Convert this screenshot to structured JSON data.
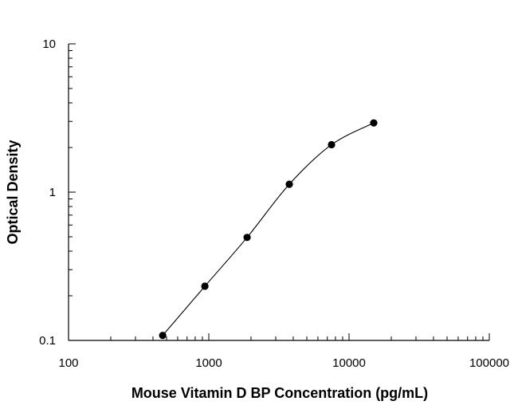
{
  "chart_data": {
    "type": "scatter",
    "title": "",
    "xlabel": "Mouse Vitamin D BP Concentration (pg/mL)",
    "ylabel": "Optical Density",
    "x_scale": "log",
    "y_scale": "log",
    "xlim": [
      100,
      100000
    ],
    "ylim": [
      0.1,
      10
    ],
    "x_ticks": [
      100,
      1000,
      10000,
      100000
    ],
    "x_tick_labels": [
      "100",
      "1000",
      "10000",
      "100000"
    ],
    "y_ticks": [
      0.1,
      1,
      10
    ],
    "y_tick_labels": [
      "0.1",
      "1",
      "10"
    ],
    "grid": false,
    "series": [
      {
        "x": [
          469,
          938,
          1875,
          3750,
          7500,
          15000
        ],
        "y": [
          0.108,
          0.232,
          0.495,
          1.13,
          2.09,
          2.93
        ],
        "marker": "circle",
        "fit_curve": true
      }
    ],
    "colors": {
      "marker": "#000000",
      "line": "#000000",
      "axis": "#000000"
    }
  }
}
